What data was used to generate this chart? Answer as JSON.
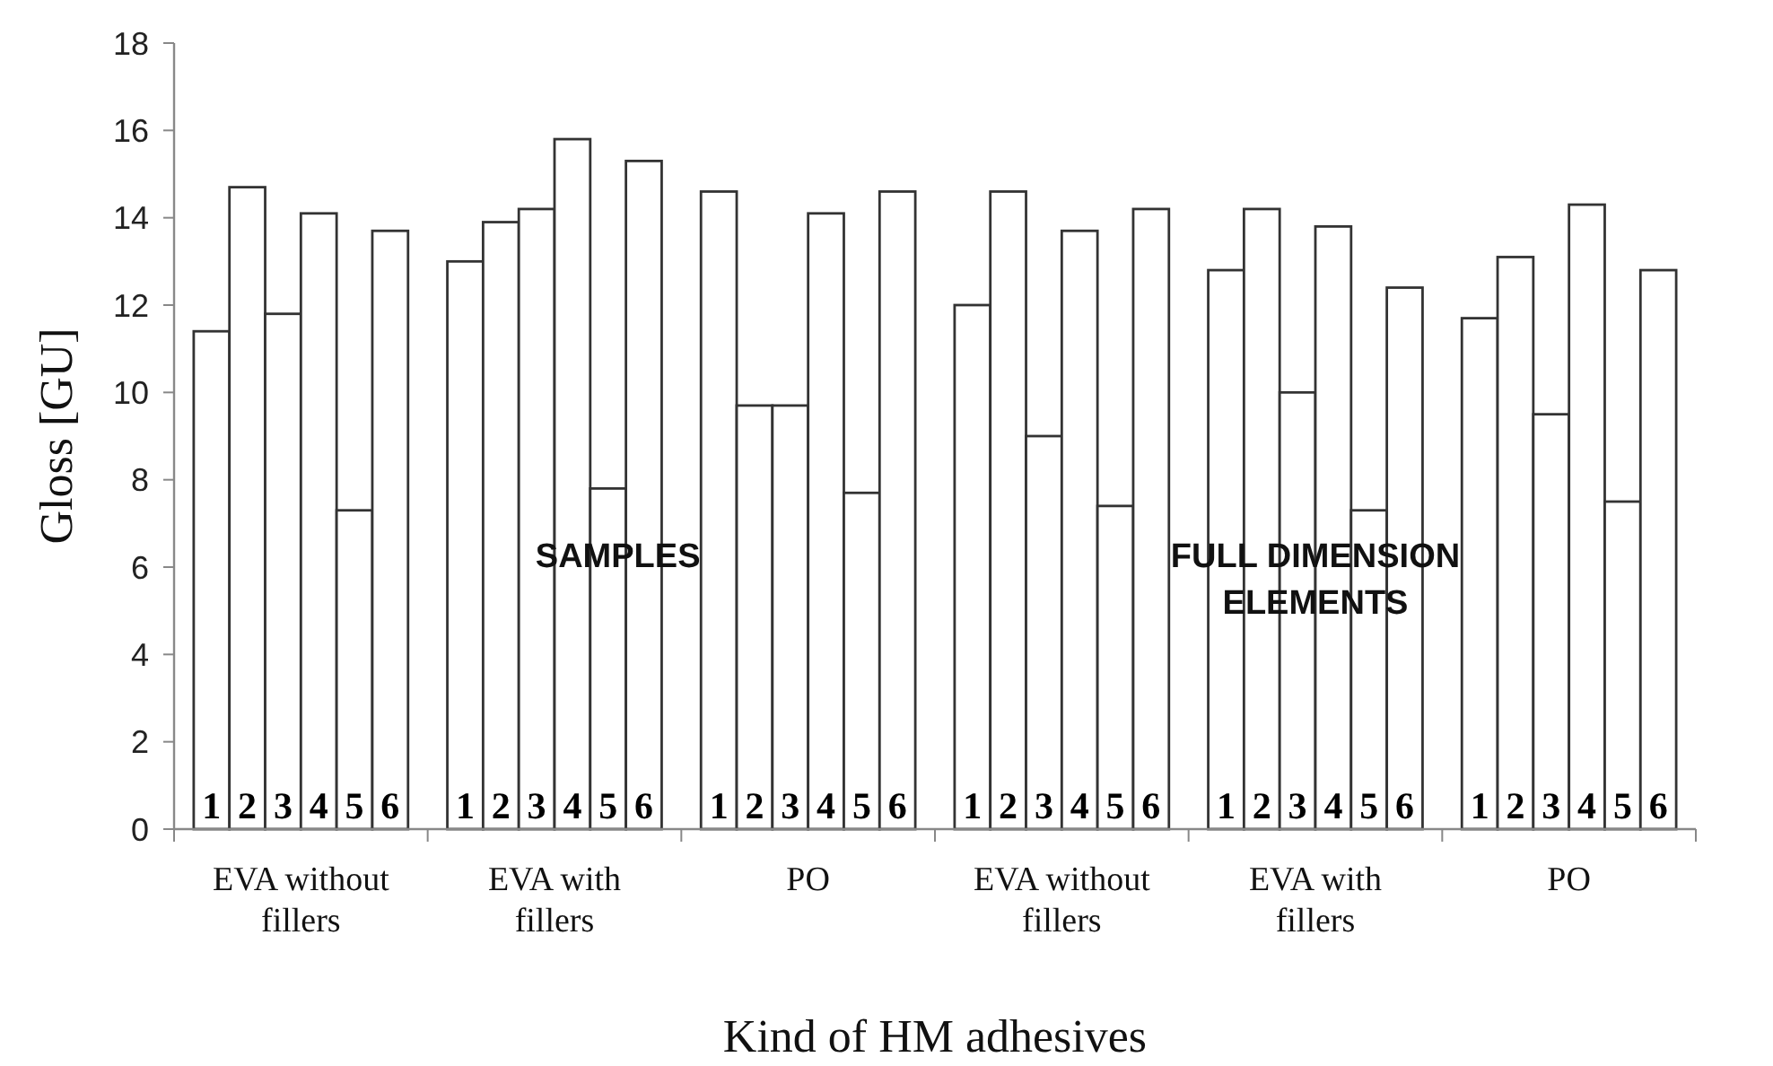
{
  "chart_data": {
    "type": "bar",
    "xlabel": "Kind of HM adhesives",
    "ylabel": "Gloss [GU]",
    "categories": [
      "EVA without fillers",
      "EVA with fillers",
      "PO",
      "EVA without fillers",
      "EVA with fillers",
      "PO"
    ],
    "series": [
      {
        "name": "1",
        "color": "#ffffff",
        "values": [
          11.4,
          13.0,
          14.6,
          12.0,
          12.8,
          11.7
        ]
      },
      {
        "name": "2",
        "color": "#ffffff",
        "values": [
          14.7,
          13.9,
          9.7,
          14.6,
          14.2,
          13.1
        ]
      },
      {
        "name": "3",
        "color": "#ffffff",
        "values": [
          11.8,
          14.2,
          9.7,
          9.0,
          10.0,
          9.5
        ]
      },
      {
        "name": "4",
        "color": "#ffffff",
        "values": [
          14.1,
          15.8,
          14.1,
          13.7,
          13.8,
          14.3
        ]
      },
      {
        "name": "5",
        "color": "#ffffff",
        "values": [
          7.3,
          7.8,
          7.7,
          7.4,
          7.3,
          7.5
        ]
      },
      {
        "name": "6",
        "color": "#ffffff",
        "values": [
          13.7,
          15.3,
          14.6,
          14.2,
          12.4,
          12.8
        ]
      }
    ],
    "ylim": [
      0,
      18
    ],
    "yticks": [
      0,
      2,
      4,
      6,
      8,
      10,
      12,
      14,
      16,
      18
    ],
    "grid": false,
    "legend": false,
    "annotations": [
      "SAMPLES",
      "FULL DIMENSION ELEMENTS"
    ]
  }
}
